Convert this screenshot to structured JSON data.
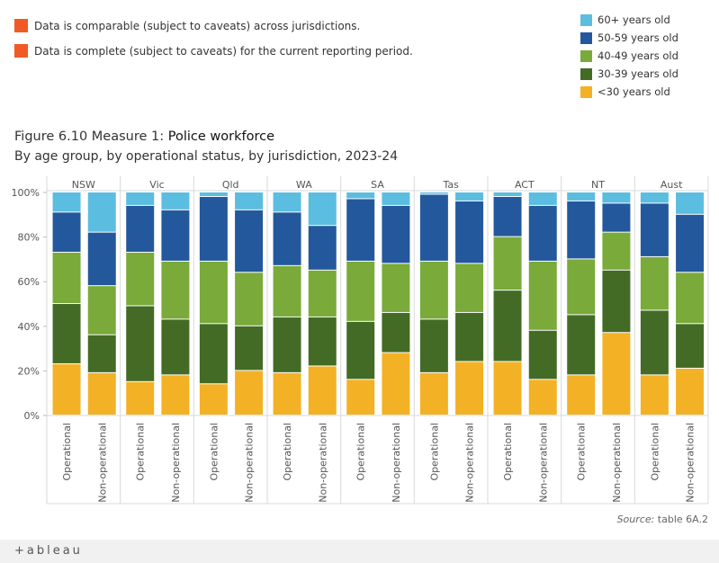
{
  "caveats": [
    "Data is comparable (subject to caveats) across jurisdictions.",
    "Data is complete (subject to caveats) for the current reporting period."
  ],
  "legend": [
    {
      "label": "60+ years old",
      "color": "#5bbde0"
    },
    {
      "label": "50-59 years old",
      "color": "#24589c"
    },
    {
      "label": "40-49 years old",
      "color": "#79aa3a"
    },
    {
      "label": "30-39 years old",
      "color": "#436b26"
    },
    {
      "label": "<30 years old",
      "color": "#f3b126"
    }
  ],
  "title_prefix": "Figure 6.10 Measure 1: ",
  "title_main": "Police workforce",
  "subtitle": "By age group, by operational status, by jurisdiction, 2023-24",
  "source_label": "Source:",
  "source_text": " table 6A.2",
  "brand": "+ableau",
  "chart_data": {
    "type": "bar",
    "stacked": true,
    "y_ticks": [
      "0%",
      "20%",
      "40%",
      "60%",
      "80%",
      "100%"
    ],
    "ylim": [
      0,
      100
    ],
    "jurisdictions": [
      "NSW",
      "Vic",
      "Qld",
      "WA",
      "SA",
      "Tas",
      "ACT",
      "NT",
      "Aust"
    ],
    "statuses": [
      "Operational",
      "Non-operational"
    ],
    "series_order": [
      "<30 years old",
      "30-39 years old",
      "40-49 years old",
      "50-59 years old",
      "60+ years old"
    ],
    "values": {
      "NSW": {
        "Operational": [
          23,
          27,
          23,
          18,
          9
        ],
        "Non-operational": [
          19,
          17,
          22,
          24,
          18
        ]
      },
      "Vic": {
        "Operational": [
          15,
          34,
          24,
          21,
          6
        ],
        "Non-operational": [
          18,
          25,
          26,
          23,
          8
        ]
      },
      "Qld": {
        "Operational": [
          14,
          27,
          28,
          29,
          2
        ],
        "Non-operational": [
          20,
          20,
          24,
          28,
          8
        ]
      },
      "WA": {
        "Operational": [
          19,
          25,
          23,
          24,
          9
        ],
        "Non-operational": [
          22,
          22,
          21,
          20,
          15
        ]
      },
      "SA": {
        "Operational": [
          16,
          26,
          27,
          28,
          3
        ],
        "Non-operational": [
          28,
          18,
          22,
          26,
          6
        ]
      },
      "Tas": {
        "Operational": [
          19,
          24,
          26,
          30,
          1
        ],
        "Non-operational": [
          24,
          22,
          22,
          28,
          4
        ]
      },
      "ACT": {
        "Operational": [
          24,
          32,
          24,
          18,
          2
        ],
        "Non-operational": [
          16,
          22,
          31,
          25,
          6
        ]
      },
      "NT": {
        "Operational": [
          18,
          27,
          25,
          26,
          4
        ],
        "Non-operational": [
          37,
          28,
          17,
          13,
          5
        ]
      },
      "Aust": {
        "Operational": [
          18,
          29,
          24,
          24,
          5
        ],
        "Non-operational": [
          21,
          20,
          23,
          26,
          10
        ]
      }
    }
  }
}
